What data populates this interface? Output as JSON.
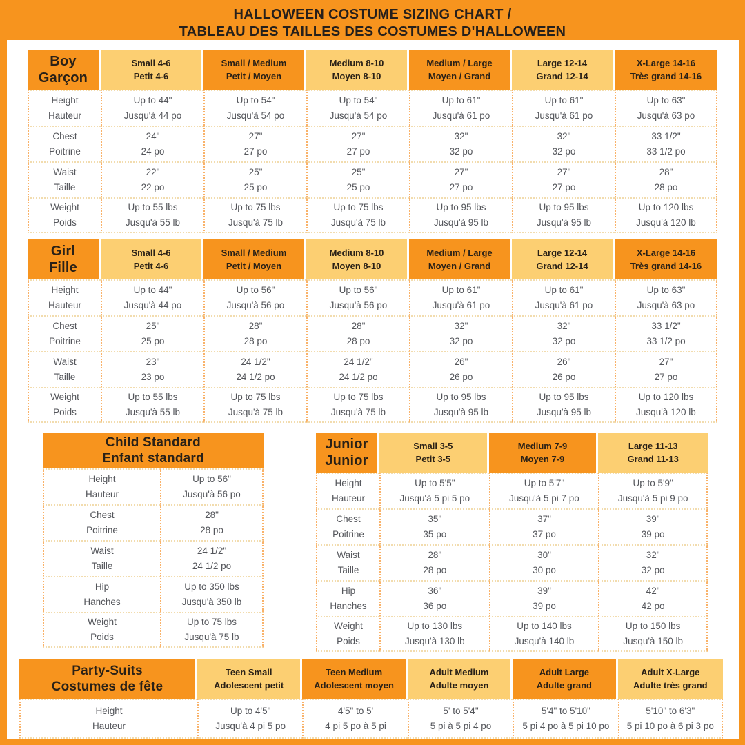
{
  "title": {
    "line1": "HALLOWEEN COSTUME SIZING CHART /",
    "line2": "TABLEAU DES TAILLES DES COSTUMES D'HALLOWEEN"
  },
  "colors": {
    "page_orange": "#F7941E",
    "header_dark_orange": "#F7941E",
    "header_light_yellow": "#FCCF72",
    "header_text_dark": "#2A2117",
    "body_text_gray": "#54565B",
    "panel_white": "#FFFFFF",
    "dotted_border_orange": "#F9B269",
    "dotted_border_tan": "#F2DCAE"
  },
  "tables": [
    {
      "id": "boy",
      "header": [
        {
          "en": "Boy",
          "fr": "Garçon",
          "tone": "dark",
          "type": "label"
        },
        {
          "en": "Small 4-6",
          "fr": "Petit 4-6",
          "tone": "light"
        },
        {
          "en": "Small / Medium",
          "fr": "Petit / Moyen",
          "tone": "dark"
        },
        {
          "en": "Medium 8-10",
          "fr": "Moyen 8-10",
          "tone": "light"
        },
        {
          "en": "Medium / Large",
          "fr": "Moyen / Grand",
          "tone": "dark"
        },
        {
          "en": "Large 12-14",
          "fr": "Grand 12-14",
          "tone": "light"
        },
        {
          "en": "X-Large 14-16",
          "fr": "Très grand 14-16",
          "tone": "dark"
        }
      ],
      "rows": [
        {
          "en": "Height",
          "fr": "Hauteur",
          "cells": [
            [
              "Up to 44\"",
              "Jusqu'à 44 po"
            ],
            [
              "Up to 54\"",
              "Jusqu'à 54 po"
            ],
            [
              "Up to 54\"",
              "Jusqu'à 54 po"
            ],
            [
              "Up to 61\"",
              "Jusqu'à 61 po"
            ],
            [
              "Up to 61\"",
              "Jusqu'à 61 po"
            ],
            [
              "Up to 63\"",
              "Jusqu'à 63 po"
            ]
          ]
        },
        {
          "en": "Chest",
          "fr": "Poitrine",
          "cells": [
            [
              "24\"",
              "24 po"
            ],
            [
              "27\"",
              "27 po"
            ],
            [
              "27\"",
              "27 po"
            ],
            [
              "32\"",
              "32 po"
            ],
            [
              "32\"",
              "32 po"
            ],
            [
              "33 1/2\"",
              "33 1/2 po"
            ]
          ]
        },
        {
          "en": "Waist",
          "fr": "Taille",
          "cells": [
            [
              "22\"",
              "22 po"
            ],
            [
              "25\"",
              "25 po"
            ],
            [
              "25\"",
              "25 po"
            ],
            [
              "27\"",
              "27 po"
            ],
            [
              "27\"",
              "27 po"
            ],
            [
              "28\"",
              "28 po"
            ]
          ]
        },
        {
          "en": "Weight",
          "fr": "Poids",
          "cells": [
            [
              "Up to 55 lbs",
              "Jusqu'à 55 lb"
            ],
            [
              "Up to 75 lbs",
              "Jusqu'à 75 lb"
            ],
            [
              "Up to 75 lbs",
              "Jusqu'à 75 lb"
            ],
            [
              "Up to 95 lbs",
              "Jusqu'à 95 lb"
            ],
            [
              "Up to 95 lbs",
              "Jusqu'à 95 lb"
            ],
            [
              "Up to 120 lbs",
              "Jusqu'à 120 lb"
            ]
          ]
        }
      ]
    },
    {
      "id": "girl",
      "header": [
        {
          "en": "Girl",
          "fr": "Fille",
          "tone": "dark",
          "type": "label"
        },
        {
          "en": "Small 4-6",
          "fr": "Petit 4-6",
          "tone": "light"
        },
        {
          "en": "Small / Medium",
          "fr": "Petit / Moyen",
          "tone": "dark"
        },
        {
          "en": "Medium 8-10",
          "fr": "Moyen 8-10",
          "tone": "light"
        },
        {
          "en": "Medium / Large",
          "fr": "Moyen / Grand",
          "tone": "dark"
        },
        {
          "en": "Large 12-14",
          "fr": "Grand 12-14",
          "tone": "light"
        },
        {
          "en": "X-Large 14-16",
          "fr": "Très grand 14-16",
          "tone": "dark"
        }
      ],
      "rows": [
        {
          "en": "Height",
          "fr": "Hauteur",
          "cells": [
            [
              "Up to 44\"",
              "Jusqu'à 44 po"
            ],
            [
              "Up to 56\"",
              "Jusqu'à 56 po"
            ],
            [
              "Up to 56\"",
              "Jusqu'à 56 po"
            ],
            [
              "Up to 61\"",
              "Jusqu'à 61 po"
            ],
            [
              "Up to 61\"",
              "Jusqu'à 61 po"
            ],
            [
              "Up to 63\"",
              "Jusqu'à 63 po"
            ]
          ]
        },
        {
          "en": "Chest",
          "fr": "Poitrine",
          "cells": [
            [
              "25\"",
              "25 po"
            ],
            [
              "28\"",
              "28 po"
            ],
            [
              "28\"",
              "28 po"
            ],
            [
              "32\"",
              "32 po"
            ],
            [
              "32\"",
              "32 po"
            ],
            [
              "33 1/2\"",
              "33 1/2 po"
            ]
          ]
        },
        {
          "en": "Waist",
          "fr": "Taille",
          "cells": [
            [
              "23\"",
              "23 po"
            ],
            [
              "24 1/2\"",
              "24 1/2 po"
            ],
            [
              "24 1/2\"",
              "24 1/2 po"
            ],
            [
              "26\"",
              "26 po"
            ],
            [
              "26\"",
              "26 po"
            ],
            [
              "27\"",
              "27 po"
            ]
          ]
        },
        {
          "en": "Weight",
          "fr": "Poids",
          "cells": [
            [
              "Up to 55 lbs",
              "Jusqu'à 55 lb"
            ],
            [
              "Up to 75 lbs",
              "Jusqu'à 75 lb"
            ],
            [
              "Up to 75 lbs",
              "Jusqu'à 75 lb"
            ],
            [
              "Up to 95 lbs",
              "Jusqu'à 95 lb"
            ],
            [
              "Up to 95 lbs",
              "Jusqu'à 95 lb"
            ],
            [
              "Up to 120 lbs",
              "Jusqu'à 120 lb"
            ]
          ]
        }
      ]
    },
    {
      "id": "child",
      "header": [
        {
          "en": "Child Standard",
          "fr": "Enfant standard",
          "tone": "dark",
          "type": "label",
          "span": "all"
        }
      ],
      "rows": [
        {
          "en": "Height",
          "fr": "Hauteur",
          "cells": [
            [
              "Up to 56\"",
              "Jusqu'à 56 po"
            ]
          ]
        },
        {
          "en": "Chest",
          "fr": "Poitrine",
          "cells": [
            [
              "28\"",
              "28 po"
            ]
          ]
        },
        {
          "en": "Waist",
          "fr": "Taille",
          "cells": [
            [
              "24 1/2\"",
              "24 1/2 po"
            ]
          ]
        },
        {
          "en": "Hip",
          "fr": "Hanches",
          "cells": [
            [
              "Up to 350 lbs",
              "Jusqu'à 350 lb"
            ]
          ]
        },
        {
          "en": "Weight",
          "fr": "Poids",
          "cells": [
            [
              "Up to 75 lbs",
              "Jusqu'à 75 lb"
            ]
          ]
        }
      ]
    },
    {
      "id": "junior",
      "header": [
        {
          "en": "Junior",
          "fr": "Junior",
          "tone": "dark",
          "type": "label"
        },
        {
          "en": "Small 3-5",
          "fr": "Petit 3-5",
          "tone": "light"
        },
        {
          "en": "Medium 7-9",
          "fr": "Moyen 7-9",
          "tone": "dark"
        },
        {
          "en": "Large 11-13",
          "fr": "Grand 11-13",
          "tone": "light"
        }
      ],
      "rows": [
        {
          "en": "Height",
          "fr": "Hauteur",
          "cells": [
            [
              "Up to 5'5\"",
              "Jusqu'à 5 pi 5 po"
            ],
            [
              "Up to 5'7\"",
              "Jusqu'à 5 pi 7 po"
            ],
            [
              "Up to 5'9\"",
              "Jusqu'à 5 pi 9 po"
            ]
          ]
        },
        {
          "en": "Chest",
          "fr": "Poitrine",
          "cells": [
            [
              "35\"",
              "35 po"
            ],
            [
              "37\"",
              "37 po"
            ],
            [
              "39\"",
              "39 po"
            ]
          ]
        },
        {
          "en": "Waist",
          "fr": "Taille",
          "cells": [
            [
              "28\"",
              "28 po"
            ],
            [
              "30\"",
              "30 po"
            ],
            [
              "32\"",
              "32 po"
            ]
          ]
        },
        {
          "en": "Hip",
          "fr": "Hanches",
          "cells": [
            [
              "36\"",
              "36 po"
            ],
            [
              "39\"",
              "39 po"
            ],
            [
              "42\"",
              "42 po"
            ]
          ]
        },
        {
          "en": "Weight",
          "fr": "Poids",
          "cells": [
            [
              "Up to 130 lbs",
              "Jusqu'à 130 lb"
            ],
            [
              "Up to 140 lbs",
              "Jusqu'à 140 lb"
            ],
            [
              "Up to 150 lbs",
              "Jusqu'à 150 lb"
            ]
          ]
        }
      ]
    },
    {
      "id": "party",
      "header": [
        {
          "en": "Party-Suits",
          "fr": "Costumes de fête",
          "tone": "dark",
          "type": "label"
        },
        {
          "en": "Teen Small",
          "fr": "Adolescent petit",
          "tone": "light"
        },
        {
          "en": "Teen Medium",
          "fr": "Adolescent moyen",
          "tone": "dark"
        },
        {
          "en": "Adult Medium",
          "fr": "Adulte moyen",
          "tone": "light"
        },
        {
          "en": "Adult Large",
          "fr": "Adulte grand",
          "tone": "dark"
        },
        {
          "en": "Adult X-Large",
          "fr": "Adulte très grand",
          "tone": "light"
        }
      ],
      "rows": [
        {
          "en": "Height",
          "fr": "Hauteur",
          "cells": [
            [
              "Up to 4'5\"",
              "Jusqu'à 4 pi 5 po"
            ],
            [
              "4'5\" to 5'",
              "4 pi 5 po à 5 pi"
            ],
            [
              "5' to 5'4\"",
              "5 pi à 5 pi 4 po"
            ],
            [
              "5'4\" to 5'10\"",
              "5 pi 4 po à 5 pi 10 po"
            ],
            [
              "5'10\" to 6'3\"",
              "5 pi 10 po à 6 pi 3 po"
            ]
          ]
        }
      ]
    }
  ]
}
